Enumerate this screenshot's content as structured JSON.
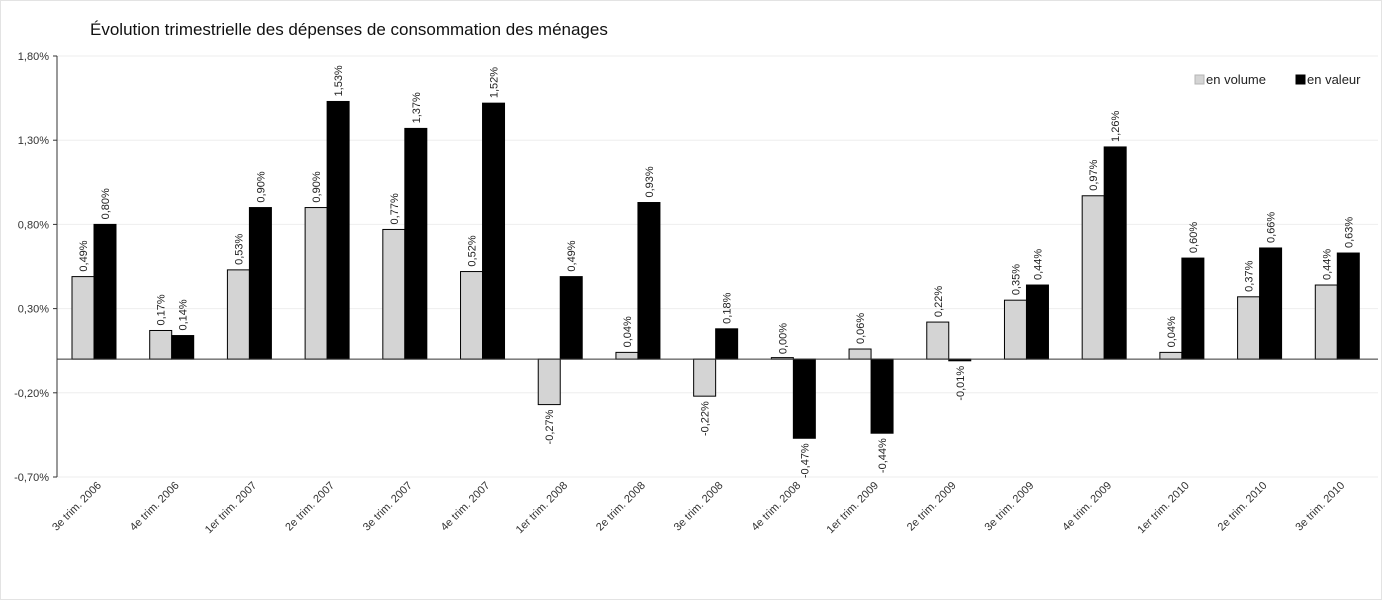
{
  "chart_data": {
    "type": "bar",
    "title": "Évolution trimestrielle des dépenses de consommation des ménages",
    "xlabel": "",
    "ylabel": "",
    "ylim": [
      -0.7,
      1.8
    ],
    "yticks": [
      -0.7,
      -0.2,
      0.3,
      0.8,
      1.3,
      1.8
    ],
    "ytick_labels": [
      "-0,70%",
      "-0,20%",
      "0,30%",
      "0,80%",
      "1,30%",
      "1,80%"
    ],
    "grid": true,
    "legend_position": "top-right",
    "categories": [
      "3e trim. 2006",
      "4e trim. 2006",
      "1er trim. 2007",
      "2e trim. 2007",
      "3e trim. 2007",
      "4e trim. 2007",
      "1er trim. 2008",
      "2e trim. 2008",
      "3e trim. 2008",
      "4e trim. 2008",
      "1er trim. 2009",
      "2e trim. 2009",
      "3e trim. 2009",
      "4e trim. 2009",
      "1er trim. 2010",
      "2e trim. 2010",
      "3e trim. 2010"
    ],
    "series": [
      {
        "name": "en volume",
        "color": "#d4d4d4",
        "values": [
          0.49,
          0.17,
          0.53,
          0.9,
          0.77,
          0.52,
          -0.27,
          0.04,
          -0.22,
          0.0,
          0.06,
          0.22,
          0.35,
          0.97,
          0.04,
          0.37,
          0.44
        ],
        "labels": [
          "0,49%",
          "0,17%",
          "0,53%",
          "0,90%",
          "0,77%",
          "0,52%",
          "-0,27%",
          "0,04%",
          "-0,22%",
          "0,00%",
          "0,06%",
          "0,22%",
          "0,35%",
          "0,97%",
          "0,04%",
          "0,37%",
          "0,44%"
        ]
      },
      {
        "name": "en valeur",
        "color": "#000000",
        "values": [
          0.8,
          0.14,
          0.9,
          1.53,
          1.37,
          1.52,
          0.49,
          0.93,
          0.18,
          -0.47,
          -0.44,
          -0.01,
          0.44,
          1.26,
          0.6,
          0.66,
          0.63
        ],
        "labels": [
          "0,80%",
          "0,14%",
          "0,90%",
          "1,53%",
          "1,37%",
          "1,52%",
          "0,49%",
          "0,93%",
          "0,18%",
          "-0,47%",
          "-0,44%",
          "-0,01%",
          "0,44%",
          "1,26%",
          "0,60%",
          "0,66%",
          "0,63%"
        ]
      }
    ]
  }
}
